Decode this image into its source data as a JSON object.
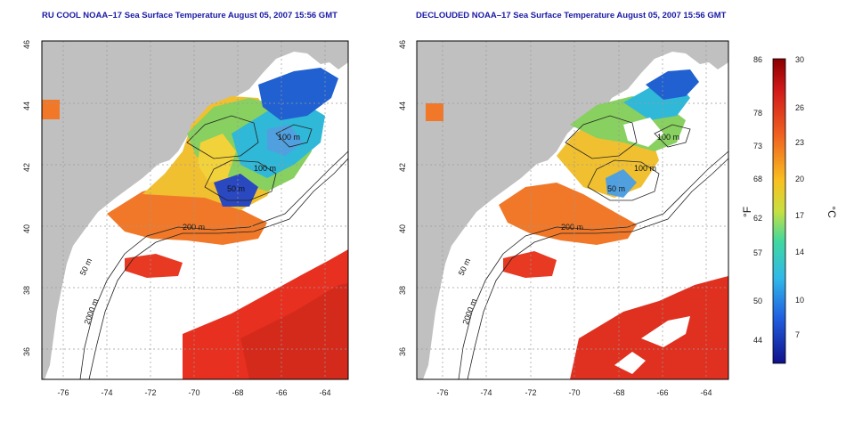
{
  "colors": {
    "land": "#c0c0c0",
    "water_bg": "#ffffff",
    "grid": "#9a9a9a",
    "contour": "#222222",
    "title": "#1a1aa6"
  },
  "maps": [
    {
      "id": "left",
      "title": "RU COOL NOAA–17 Sea Surface Temperature August 05, 2007 15:56 GMT",
      "x_ticks": [
        "-76",
        "-74",
        "-72",
        "-70",
        "-68",
        "-66",
        "-64"
      ],
      "y_ticks": [
        "46",
        "44",
        "42",
        "40",
        "38",
        "36"
      ],
      "contour_labels": [
        "100 m",
        "100 m",
        "50 m",
        "200 m",
        "50 m",
        "2000 m"
      ]
    },
    {
      "id": "right",
      "title": "DECLOUDED NOAA–17 Sea Surface Temperature August 05, 2007 15:56 GMT",
      "x_ticks": [
        "-76",
        "-74",
        "-72",
        "-70",
        "-68",
        "-66",
        "-64"
      ],
      "y_ticks": [
        "46",
        "44",
        "42",
        "40",
        "38",
        "36"
      ],
      "contour_labels": [
        "100 m",
        "100 m",
        "50 m",
        "200 m",
        "50 m",
        "2000 m"
      ]
    }
  ],
  "colorbar": {
    "f_label": "°F",
    "c_label": "°C",
    "f_ticks": [
      "86",
      "78",
      "73",
      "68",
      "62",
      "57",
      "50",
      "44"
    ],
    "c_ticks": [
      "30",
      "26",
      "23",
      "20",
      "17",
      "14",
      "10",
      "7"
    ]
  }
}
